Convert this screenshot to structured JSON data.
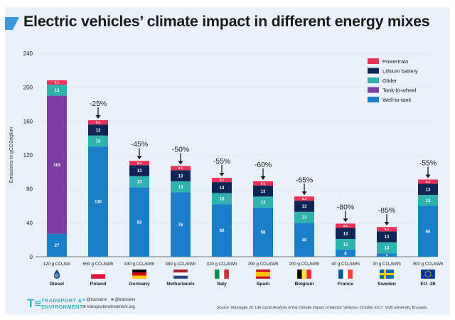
{
  "title": "Electric vehicles’ climate impact in different energy mixes",
  "chart_data": {
    "type": "bar",
    "stacked": true,
    "ylabel": "Emissions in gCO2eq/km",
    "ylim": [
      0,
      240
    ],
    "yticks": [
      "0",
      "40",
      "80",
      "120",
      "160",
      "200",
      "240"
    ],
    "legend": {
      "position": "top-right",
      "items": [
        {
          "name": "Powertrain",
          "color": "#e8325a"
        },
        {
          "name": "Lithium battery",
          "color": "#0f2457"
        },
        {
          "name": "Glider",
          "color": "#2fb3ae"
        },
        {
          "name": "Tank-to-wheel",
          "color": "#7a3fa0"
        },
        {
          "name": "Well-to-tank",
          "color": "#1a7fc9"
        }
      ]
    },
    "bars": [
      {
        "mix": "120 g CO₂/km",
        "country": "Diesel",
        "change": "",
        "segments": [
          {
            "series": "Well-to-tank",
            "value": 27,
            "label": "27"
          },
          {
            "series": "Tank-to-wheel",
            "value": 163,
            "label": "163"
          },
          {
            "series": "Glider",
            "value": 13,
            "label": "13"
          },
          {
            "series": "Powertrain",
            "value": 5.1,
            "label": "5.1"
          }
        ]
      },
      {
        "mix": "650 g CO₂/kWh",
        "country": "Poland",
        "change": "-25%",
        "segments": [
          {
            "series": "Well-to-tank",
            "value": 130,
            "label": "130"
          },
          {
            "series": "Glider",
            "value": 13,
            "label": "13"
          },
          {
            "series": "Lithium battery",
            "value": 13,
            "label": "13"
          },
          {
            "series": "Powertrain",
            "value": 5.1,
            "label": "5.1"
          }
        ]
      },
      {
        "mix": "430 g CO₂/kWh",
        "country": "Germany",
        "change": "-45%",
        "segments": [
          {
            "series": "Well-to-tank",
            "value": 82,
            "label": "82"
          },
          {
            "series": "Glider",
            "value": 13,
            "label": "13"
          },
          {
            "series": "Lithium battery",
            "value": 13,
            "label": "13"
          },
          {
            "series": "Powertrain",
            "value": 5.1,
            "label": "5.1"
          }
        ]
      },
      {
        "mix": "380 g CO₂/kWh",
        "country": "Netherlands",
        "change": "-50%",
        "segments": [
          {
            "series": "Well-to-tank",
            "value": 76,
            "label": "76"
          },
          {
            "series": "Glider",
            "value": 13,
            "label": "13"
          },
          {
            "series": "Lithium battery",
            "value": 13,
            "label": "13"
          },
          {
            "series": "Powertrain",
            "value": 5.1,
            "label": "5.1"
          }
        ]
      },
      {
        "mix": "310 g CO₂/kWh",
        "country": "Italy",
        "change": "-55%",
        "segments": [
          {
            "series": "Well-to-tank",
            "value": 62,
            "label": "62"
          },
          {
            "series": "Glider",
            "value": 13,
            "label": "13"
          },
          {
            "series": "Lithium battery",
            "value": 13,
            "label": "13"
          },
          {
            "series": "Powertrain",
            "value": 5.1,
            "label": "5.1"
          }
        ]
      },
      {
        "mix": "290 g CO₂/kWh",
        "country": "Spain",
        "change": "-60%",
        "segments": [
          {
            "series": "Well-to-tank",
            "value": 58,
            "label": "58"
          },
          {
            "series": "Glider",
            "value": 13,
            "label": "13"
          },
          {
            "series": "Lithium battery",
            "value": 13,
            "label": "13"
          },
          {
            "series": "Powertrain",
            "value": 5.1,
            "label": "5.1"
          }
        ]
      },
      {
        "mix": "200 g CO₂/kWh",
        "country": "Belgium",
        "change": "-65%",
        "segments": [
          {
            "series": "Well-to-tank",
            "value": 40,
            "label": "40"
          },
          {
            "series": "Glider",
            "value": 13,
            "label": "13"
          },
          {
            "series": "Lithium battery",
            "value": 13,
            "label": "13"
          },
          {
            "series": "Powertrain",
            "value": 5.1,
            "label": "5.1"
          }
        ]
      },
      {
        "mix": "40 g CO₂/kWh",
        "country": "France",
        "change": "-80%",
        "segments": [
          {
            "series": "Well-to-tank",
            "value": 8,
            "label": "8"
          },
          {
            "series": "Glider",
            "value": 13,
            "label": "13"
          },
          {
            "series": "Lithium battery",
            "value": 13,
            "label": "13"
          },
          {
            "series": "Powertrain",
            "value": 5.1,
            "label": "5.1"
          }
        ]
      },
      {
        "mix": "20 g CO₂/kWh",
        "country": "Sweden",
        "change": "-85%",
        "segments": [
          {
            "series": "Well-to-tank",
            "value": 4,
            "label": "4"
          },
          {
            "series": "Glider",
            "value": 13,
            "label": "13"
          },
          {
            "series": "Lithium battery",
            "value": 13,
            "label": "13"
          },
          {
            "series": "Powertrain",
            "value": 5.1,
            "label": "5.1"
          }
        ]
      },
      {
        "mix": "300 g CO₂/kWh",
        "country": "EU -26",
        "change": "-55%",
        "segments": [
          {
            "series": "Well-to-tank",
            "value": 60,
            "label": "60"
          },
          {
            "series": "Glider",
            "value": 13,
            "label": "13"
          },
          {
            "series": "Lithium battery",
            "value": 13,
            "label": "13"
          },
          {
            "series": "Powertrain",
            "value": 5.1,
            "label": "5.1"
          }
        ]
      }
    ]
  },
  "footer": {
    "org_line1": "TRANSPORT &",
    "org_line2": "ENVIRONMENT",
    "twitter": "@transenv",
    "facebook": "@transenv",
    "website": "transportenvironment.org",
    "source_prefix": "Source: Messagie, M. ",
    "source_title": "Life Cycle Analysis of the Climate Impact of Electric Vehicles",
    "source_suffix": ", October 2017. VUB university, Brussels."
  }
}
